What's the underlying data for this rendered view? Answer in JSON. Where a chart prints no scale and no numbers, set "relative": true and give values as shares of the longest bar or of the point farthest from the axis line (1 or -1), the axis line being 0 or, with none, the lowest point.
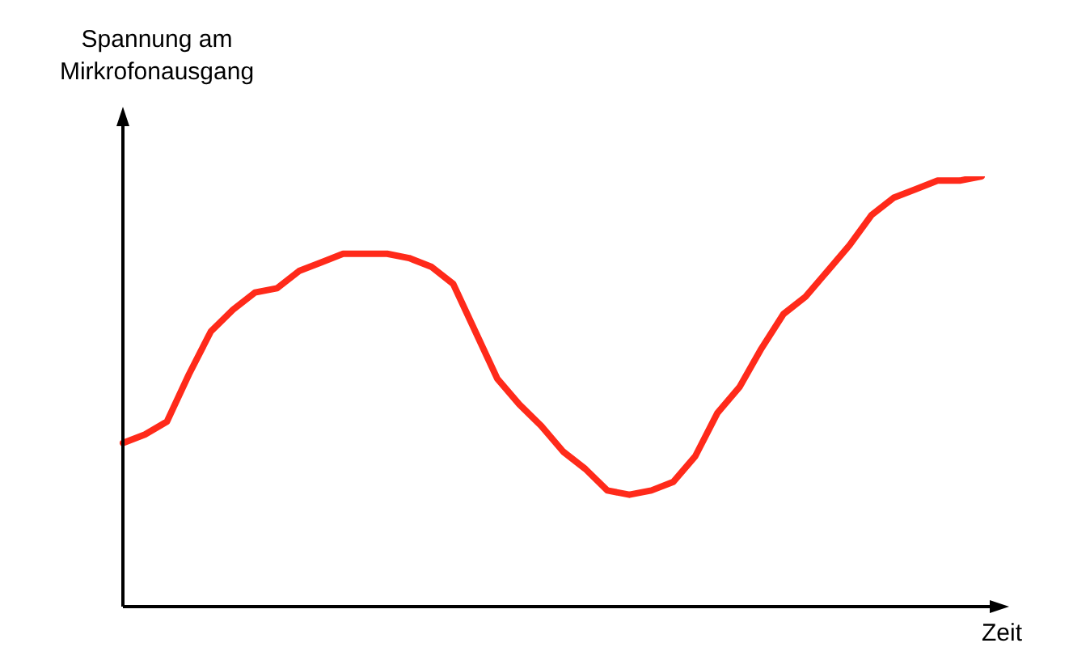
{
  "chart_data": {
    "type": "line",
    "relative": true,
    "ylabel": "Spannung am Mirkrofonausgang",
    "xlabel": "Zeit",
    "marker": "none",
    "line_style": "solid",
    "categories": [
      null,
      null,
      null,
      null,
      null,
      null,
      null,
      null,
      null,
      null,
      null,
      null,
      null,
      null,
      null,
      null,
      null,
      null,
      null,
      null,
      null,
      null,
      null,
      null,
      null,
      null,
      null,
      null,
      null,
      null,
      null,
      null,
      null,
      null,
      null,
      null,
      null,
      null,
      null,
      null
    ],
    "series": [
      {
        "color": "#ff2a1a",
        "values": [
          0.38,
          0.4,
          0.43,
          0.54,
          0.64,
          0.69,
          0.73,
          0.74,
          0.78,
          0.8,
          0.82,
          0.82,
          0.82,
          0.81,
          0.79,
          0.75,
          0.64,
          0.53,
          0.47,
          0.42,
          0.36,
          0.32,
          0.27,
          0.26,
          0.27,
          0.29,
          0.35,
          0.45,
          0.51,
          0.6,
          0.68,
          0.72,
          0.78,
          0.84,
          0.91,
          0.95,
          0.97,
          0.99,
          0.99,
          1.0
        ]
      }
    ]
  }
}
